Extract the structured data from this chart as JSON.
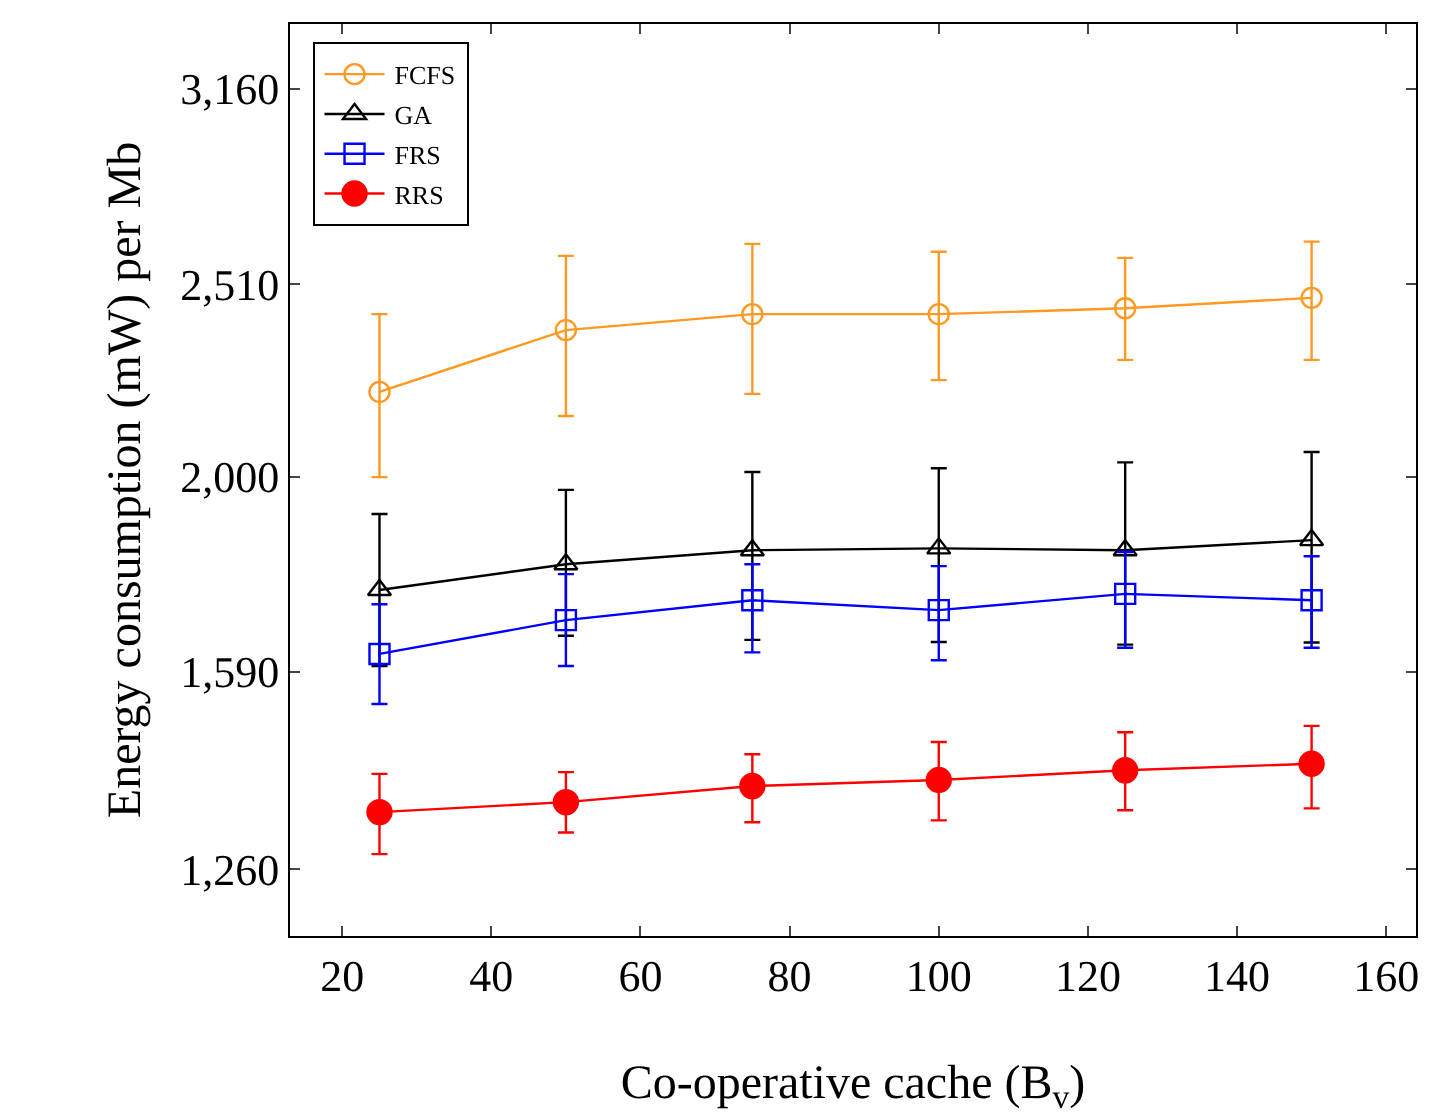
{
  "chart_data": {
    "type": "line",
    "xlabel": "Co-operative cache (B$_{v}$)",
    "ylabel": "Energy consumption (mW) per Mb",
    "x": [
      25,
      50,
      75,
      100,
      125,
      150
    ],
    "xlim": [
      13,
      164
    ],
    "xticks": [
      20,
      40,
      60,
      80,
      100,
      120,
      140,
      160
    ],
    "ylim": [
      1165,
      3410
    ],
    "log": "y",
    "yticks": [
      {
        "value": 1260,
        "label": "1,260"
      },
      {
        "value": 1590,
        "label": "1,590"
      },
      {
        "value": 2000,
        "label": "2,000"
      },
      {
        "value": 2510,
        "label": "2,510"
      },
      {
        "value": 3160,
        "label": "3,160"
      }
    ],
    "grid": false,
    "legend": "top left",
    "line_style": "solid",
    "series": [
      {
        "name": "FCFS",
        "color": "#ff9922",
        "marker": "circle",
        "values": [
          2211,
          2378,
          2423,
          2423,
          2440,
          2470
        ],
        "errors": [
          [
            2000,
            2423
          ],
          [
            2149,
            2595
          ],
          [
            2206,
            2632
          ],
          [
            2242,
            2608
          ],
          [
            2296,
            2589
          ],
          [
            2296,
            2639
          ]
        ]
      },
      {
        "name": "GA",
        "color": "#000000",
        "marker": "triangle",
        "values": [
          1751,
          1805,
          1835,
          1839,
          1835,
          1857
        ],
        "errors": [
          [
            1601,
            1915
          ],
          [
            1659,
            1970
          ],
          [
            1651,
            2012
          ],
          [
            1647,
            2021
          ],
          [
            1642,
            2035
          ],
          [
            1646,
            2060
          ]
        ]
      },
      {
        "name": "FRS",
        "color": "#0000ff",
        "marker": "square",
        "values": [
          1624,
          1690,
          1730,
          1710,
          1743,
          1730
        ],
        "errors": [
          [
            1531,
            1722
          ],
          [
            1601,
            1784
          ],
          [
            1627,
            1805
          ],
          [
            1612,
            1801
          ],
          [
            1636,
            1831
          ],
          [
            1636,
            1822
          ]
        ]
      },
      {
        "name": "RRS",
        "color": "#ff0000",
        "marker": "circle",
        "values": [
          1348,
          1364,
          1390,
          1400,
          1416,
          1427
        ],
        "errors": [
          [
            1283,
            1410
          ],
          [
            1316,
            1413
          ],
          [
            1332,
            1443
          ],
          [
            1335,
            1464
          ],
          [
            1351,
            1481
          ],
          [
            1354,
            1492
          ]
        ]
      }
    ]
  }
}
